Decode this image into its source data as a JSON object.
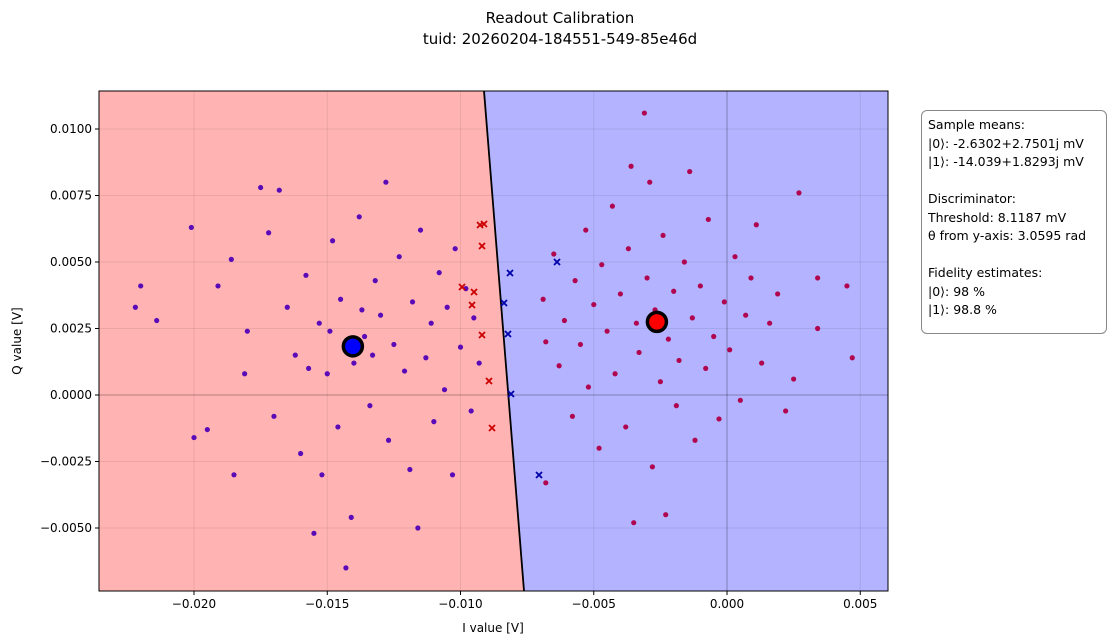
{
  "chart_data": {
    "type": "scatter",
    "title": "Readout Calibration",
    "subtitle": "tuid: 20260204-184551-549-85e46d",
    "xlabel": "I value [V]",
    "ylabel": "Q value [V]",
    "xlim": [
      -0.023565,
      0.006041
    ],
    "ylim": [
      -0.007368,
      0.011429
    ],
    "xticks": [
      {
        "value": -0.02,
        "label": "−0.020"
      },
      {
        "value": -0.015,
        "label": "−0.015"
      },
      {
        "value": -0.01,
        "label": "−0.010"
      },
      {
        "value": -0.005,
        "label": "−0.005"
      },
      {
        "value": 0,
        "label": "0.000"
      },
      {
        "value": 0.005,
        "label": "0.005"
      }
    ],
    "yticks": [
      {
        "value": -0.005,
        "label": "−0.0050"
      },
      {
        "value": -0.0025,
        "label": "−0.0025"
      },
      {
        "value": 0,
        "label": "0.0000"
      },
      {
        "value": 0.0025,
        "label": "0.0025"
      },
      {
        "value": 0.005,
        "label": "0.0050"
      },
      {
        "value": 0.0075,
        "label": "0.0075"
      },
      {
        "value": 0.01,
        "label": "0.0100"
      }
    ],
    "grid": true,
    "zero_lines": true,
    "regions": {
      "left_color": "#ffb3b3",
      "right_color": "#b3b3ff"
    },
    "boundary": {
      "x": [
        -0.009118,
        -0.007617
      ],
      "y": [
        0.011429,
        -0.007368
      ],
      "color": "#000000"
    },
    "series": [
      {
        "marker": "dot",
        "color": "#5a0bb8",
        "x": [
          -0.0222,
          -0.022,
          -0.0214,
          -0.0201,
          -0.02,
          -0.0195,
          -0.0191,
          -0.0185,
          -0.0186,
          -0.0181,
          -0.018,
          -0.0175,
          -0.0172,
          -0.017,
          -0.0168,
          -0.0165,
          -0.0162,
          -0.016,
          -0.0158,
          -0.0155,
          -0.0153,
          -0.015,
          -0.0148,
          -0.0146,
          -0.0145,
          -0.0143,
          -0.0141,
          -0.014,
          -0.0138,
          -0.0136,
          -0.0134,
          -0.0132,
          -0.013,
          -0.0128,
          -0.0127,
          -0.0125,
          -0.0123,
          -0.0121,
          -0.0119,
          -0.0118,
          -0.0116,
          -0.0115,
          -0.0113,
          -0.0111,
          -0.011,
          -0.0108,
          -0.0106,
          -0.0105,
          -0.0103,
          -0.0102,
          -0.01,
          -0.0098,
          -0.0096,
          -0.0095,
          -0.0093,
          -0.0157,
          -0.0149,
          -0.0137,
          -0.0152,
          -0.0133
        ],
        "y": [
          0.0033,
          0.0041,
          0.0028,
          0.0063,
          -0.0016,
          -0.0013,
          0.0041,
          -0.003,
          0.0051,
          0.0008,
          0.0024,
          0.0078,
          0.0061,
          -0.0008,
          0.0077,
          0.0033,
          0.0015,
          -0.0022,
          0.0045,
          -0.0052,
          0.0027,
          0.0008,
          0.0058,
          -0.0012,
          0.0036,
          -0.0065,
          -0.0046,
          0.0012,
          0.0067,
          0.0022,
          -0.0004,
          0.0043,
          0.003,
          0.008,
          -0.0017,
          0.0019,
          0.0052,
          0.0009,
          -0.0028,
          0.0035,
          -0.005,
          0.0062,
          0.0014,
          0.0027,
          -0.001,
          0.0046,
          0.0002,
          0.0033,
          -0.003,
          0.0055,
          0.0018,
          0.004,
          -0.0006,
          0.0029,
          0.0012,
          0.001,
          0.0024,
          0.0032,
          -0.003,
          0.0015
        ]
      },
      {
        "marker": "dot",
        "color": "#b0064f",
        "x": [
          -0.0069,
          -0.0068,
          -0.0068,
          -0.0065,
          -0.0063,
          -0.0061,
          -0.0058,
          -0.0057,
          -0.0055,
          -0.0053,
          -0.0052,
          -0.005,
          -0.0048,
          -0.0047,
          -0.0045,
          -0.0043,
          -0.0042,
          -0.004,
          -0.0038,
          -0.0037,
          -0.0036,
          -0.0035,
          -0.0034,
          -0.0033,
          -0.0031,
          -0.003,
          -0.0029,
          -0.0028,
          -0.0027,
          -0.0025,
          -0.0024,
          -0.0023,
          -0.0022,
          -0.002,
          -0.0019,
          -0.0018,
          -0.0016,
          -0.0014,
          -0.0013,
          -0.0012,
          -0.001,
          -0.0008,
          -0.0007,
          -0.0005,
          -0.0003,
          -0.0001,
          0.0001,
          0.0003,
          0.0005,
          0.0007,
          0.0009,
          0.0011,
          0.0013,
          0.0016,
          0.0019,
          0.0022,
          0.0025,
          0.0027,
          0.0034,
          0.0034,
          0.0045,
          0.0047
        ],
        "y": [
          0.0036,
          0.002,
          -0.0033,
          0.0053,
          0.0011,
          0.0028,
          -0.0008,
          0.0043,
          0.0019,
          0.0062,
          0.0003,
          0.0034,
          -0.002,
          0.0049,
          0.0024,
          0.0071,
          0.0008,
          0.0038,
          -0.0012,
          0.0055,
          0.0086,
          -0.0048,
          0.0027,
          0.0016,
          0.0106,
          0.0044,
          0.008,
          -0.0027,
          0.0032,
          0.0005,
          0.006,
          -0.0045,
          0.0021,
          0.0039,
          -0.0004,
          0.0013,
          0.005,
          0.0084,
          0.0029,
          -0.0017,
          0.0041,
          0.001,
          0.0066,
          0.0022,
          -0.0009,
          0.0035,
          0.0017,
          0.0052,
          -0.0002,
          0.003,
          0.0044,
          0.0064,
          0.0012,
          0.0027,
          0.0038,
          -0.0006,
          0.0006,
          0.0076,
          0.0025,
          0.0044,
          0.0041,
          0.0014
        ]
      },
      {
        "marker": "x",
        "color": "#cc0000",
        "x": [
          -0.009268,
          -0.009193,
          -0.009944,
          -0.009493,
          -0.009568,
          -0.009193,
          -0.008931,
          -0.008818,
          -0.009118
        ],
        "y": [
          0.006391,
          0.005602,
          0.00406,
          0.003872,
          0.003383,
          0.002256,
          0.000526,
          -0.001241,
          0.006429
        ]
      },
      {
        "marker": "x",
        "color": "#0000aa",
        "x": [
          -0.008143,
          -0.008368,
          -0.008218,
          -0.008105,
          -0.006379,
          -0.007054
        ],
        "y": [
          0.004586,
          0.003459,
          0.002293,
          3.8e-05,
          0.005,
          -0.003008
        ]
      },
      {
        "marker": "mean",
        "color": "#0000ff",
        "x": [
          -0.014039
        ],
        "y": [
          0.0018293
        ]
      },
      {
        "marker": "mean",
        "color": "#ff0000",
        "x": [
          -0.0026302
        ],
        "y": [
          0.0027501
        ]
      }
    ],
    "info_box": [
      {
        "heading": "Sample means:",
        "lines": [
          "|0⟩: -2.6302+2.7501j mV",
          "|1⟩: -14.039+1.8293j mV"
        ]
      },
      {
        "heading": "Discriminator:",
        "lines": [
          "Threshold: 8.1187 mV",
          "θ from y-axis: 3.0595 rad"
        ]
      },
      {
        "heading": "Fidelity estimates:",
        "lines": [
          "|0⟩: 98 %",
          "|1⟩: 98.8 %"
        ]
      }
    ]
  }
}
